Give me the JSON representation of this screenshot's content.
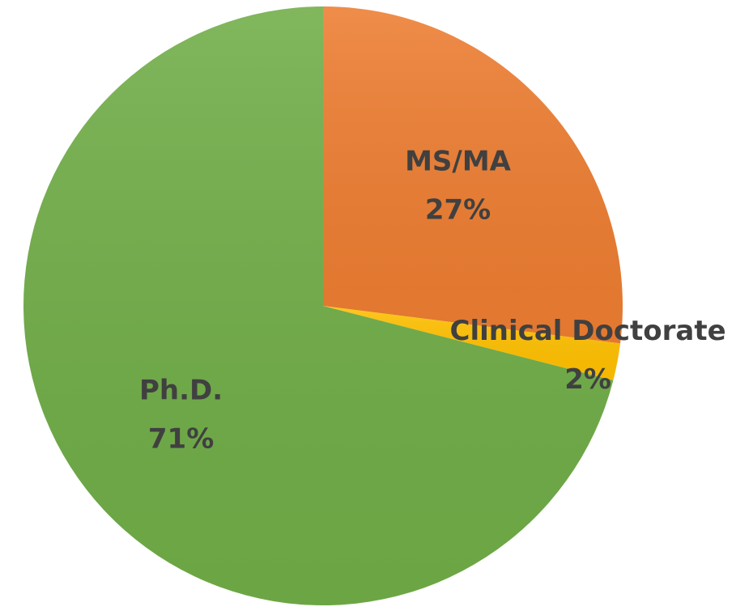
{
  "chart_data": {
    "type": "pie",
    "categories": [
      "MS/MA",
      "Clinical Doctorate",
      "Ph.D."
    ],
    "values": [
      27,
      2,
      71
    ],
    "value_labels": [
      "27%",
      "2%",
      "71%"
    ],
    "colors": [
      "#ED7D31",
      "#FFC000",
      "#70AD47"
    ]
  }
}
